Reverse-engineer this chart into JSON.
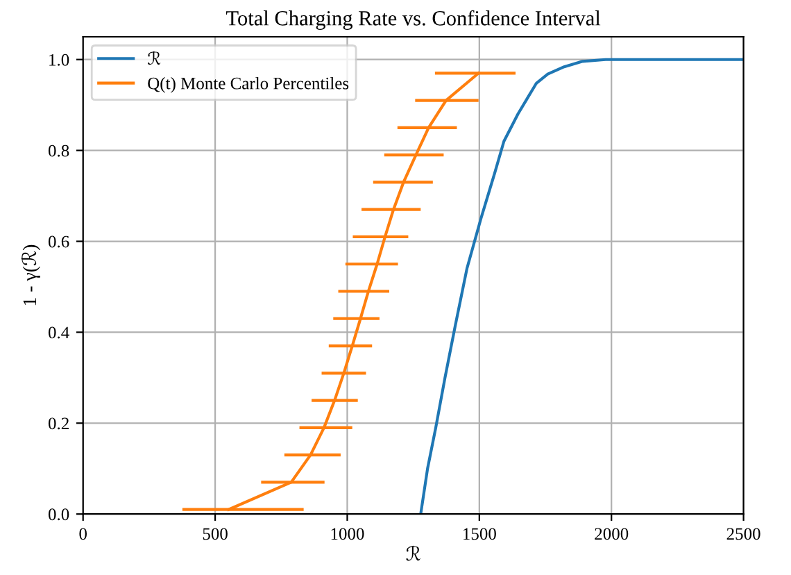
{
  "chart_data": {
    "type": "line",
    "title": "Total Charging Rate vs. Confidence Interval",
    "xlabel": "ℛ",
    "ylabel": "1 - γ(ℛ)",
    "xlim": [
      0,
      2500
    ],
    "xticks": [
      0,
      500,
      1000,
      1500,
      2000,
      2500
    ],
    "ylim": [
      0,
      1.05
    ],
    "yticks": [
      {
        "value": 0,
        "label": "0.0"
      },
      0.2,
      0.4,
      0.6,
      0.8,
      {
        "value": 1,
        "label": "1.0"
      }
    ],
    "grid": true,
    "legend": "top left",
    "marker": "none",
    "line_style": "solid",
    "series": [
      {
        "name": "ℛ",
        "color": "#1f77b4",
        "x": [
          1278,
          1304,
          1335,
          1370,
          1409,
          1453,
          1506,
          1558,
          1593,
          1646,
          1716,
          1759,
          1821,
          1891,
          1978,
          2100,
          2500
        ],
        "values": [
          0.0,
          0.1,
          0.19,
          0.3,
          0.415,
          0.54,
          0.65,
          0.75,
          0.82,
          0.88,
          0.948,
          0.968,
          0.984,
          0.996,
          1.0,
          1.0,
          1.0
        ]
      },
      {
        "name": "Q(t) Monte Carlo Percentiles",
        "color": "#ff7f0e",
        "x": [
          551,
          788,
          861,
          912,
          952,
          987,
          1019,
          1050,
          1080,
          1113,
          1143,
          1175,
          1213,
          1260,
          1308,
          1374,
          1497
        ],
        "values": [
          0.01,
          0.07,
          0.13,
          0.19,
          0.25,
          0.31,
          0.37,
          0.43,
          0.49,
          0.55,
          0.61,
          0.67,
          0.73,
          0.79,
          0.85,
          0.91,
          0.97
        ],
        "xerrors": [
          [
            376,
            835
          ],
          [
            674,
            914
          ],
          [
            762,
            975
          ],
          [
            819,
            1019
          ],
          [
            865,
            1040
          ],
          [
            903,
            1071
          ],
          [
            930,
            1094
          ],
          [
            947,
            1122
          ],
          [
            966,
            1159
          ],
          [
            993,
            1192
          ],
          [
            1021,
            1231
          ],
          [
            1054,
            1278
          ],
          [
            1098,
            1324
          ],
          [
            1140,
            1365
          ],
          [
            1190,
            1415
          ],
          [
            1257,
            1497
          ],
          [
            1332,
            1637
          ]
        ]
      }
    ]
  }
}
